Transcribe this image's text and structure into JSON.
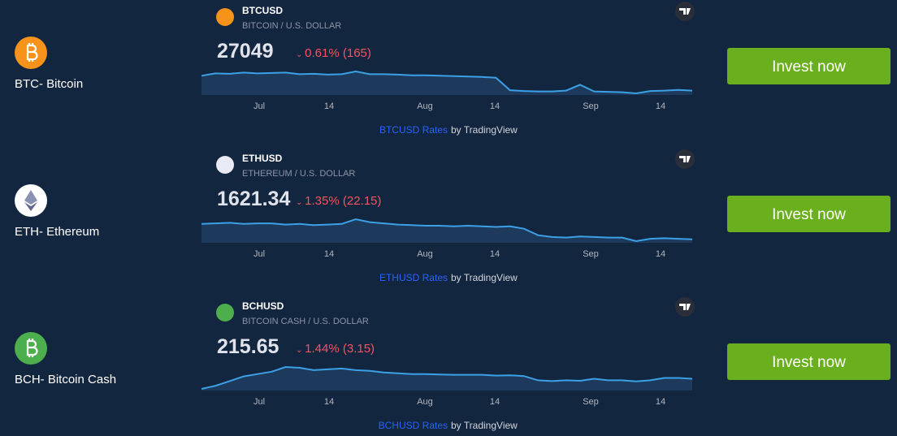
{
  "coins": [
    {
      "name": "BTC- Bitcoin",
      "symbol": "BTCUSD",
      "description": "BITCOIN / U.S. DOLLAR",
      "price": "27049",
      "change": "0.61% (165)",
      "axis_labels": [
        "Jul",
        "14",
        "Aug",
        "14",
        "Sep",
        "14"
      ],
      "link": "BTCUSD Rates",
      "attribution": "by TradingView",
      "button": "Invest now",
      "sparkline": [
        30100,
        30700,
        30600,
        30900,
        30700,
        30800,
        30900,
        30500,
        30600,
        30400,
        30500,
        31200,
        30500,
        30500,
        30400,
        30200,
        30200,
        30100,
        30000,
        29900,
        29800,
        29600,
        26400,
        26200,
        26100,
        26100,
        26300,
        27800,
        26100,
        26000,
        25900,
        25600,
        26200,
        26300,
        26500,
        26300
      ]
    },
    {
      "name": "ETH- Ethereum",
      "symbol": "ETHUSD",
      "description": "ETHEREUM / U.S. DOLLAR",
      "price": "1621.34",
      "change": "1.35% (22.15)",
      "axis_labels": [
        "Jul",
        "14",
        "Aug",
        "14",
        "Sep",
        "14"
      ],
      "link": "ETHUSD Rates",
      "attribution": "by TradingView",
      "button": "Invest now",
      "sparkline": [
        1870,
        1880,
        1890,
        1870,
        1880,
        1880,
        1860,
        1870,
        1850,
        1860,
        1870,
        1950,
        1900,
        1880,
        1860,
        1850,
        1840,
        1840,
        1830,
        1840,
        1830,
        1820,
        1830,
        1790,
        1680,
        1650,
        1640,
        1660,
        1650,
        1640,
        1640,
        1580,
        1620,
        1630,
        1620,
        1610
      ]
    },
    {
      "name": "BCH- Bitcoin Cash",
      "symbol": "BCHUSD",
      "description": "BITCOIN CASH / U.S. DOLLAR",
      "price": "215.65",
      "change": "1.44% (3.15)",
      "axis_labels": [
        "Jul",
        "14",
        "Aug",
        "14",
        "Sep",
        "14"
      ],
      "link": "BCHUSD Rates",
      "attribution": "by TradingView",
      "button": "Invest now",
      "sparkline": [
        150,
        170,
        200,
        230,
        245,
        260,
        290,
        285,
        270,
        275,
        280,
        270,
        265,
        255,
        250,
        245,
        245,
        242,
        240,
        240,
        240,
        235,
        237,
        232,
        205,
        200,
        205,
        202,
        215,
        205,
        205,
        198,
        205,
        220,
        220,
        215
      ]
    }
  ]
}
